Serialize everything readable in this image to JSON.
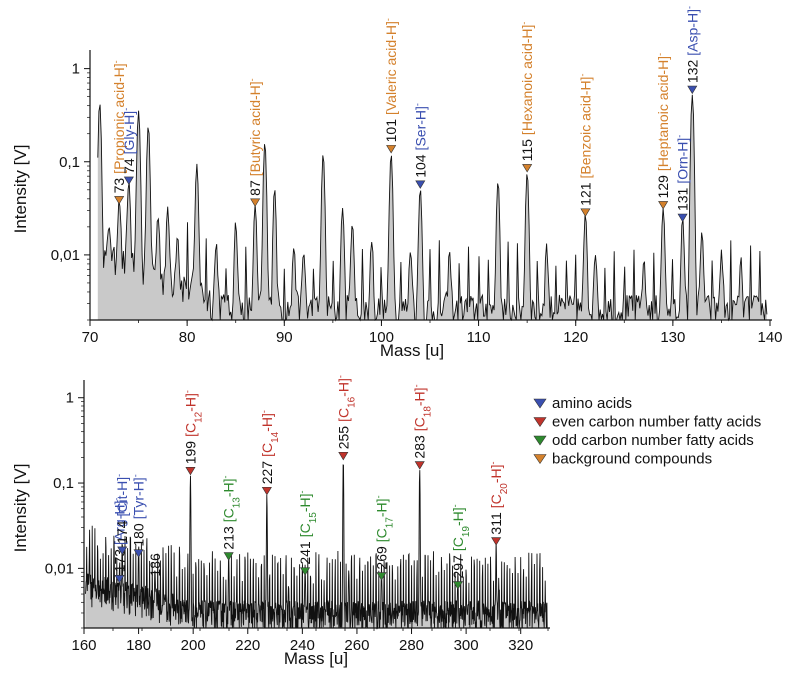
{
  "colors": {
    "amino": "#3a4fb0",
    "even": "#c0332b",
    "odd": "#2e8a2e",
    "background": "#d4812c",
    "trace_fill": "#c9c9c9",
    "trace_line": "#111111"
  },
  "legend": [
    {
      "key": "amino",
      "label": "amino acids"
    },
    {
      "key": "even",
      "label": "even carbon number fatty acids"
    },
    {
      "key": "odd",
      "label": "odd carbon number fatty acids"
    },
    {
      "key": "background",
      "label": "background compounds"
    }
  ],
  "chart_data": [
    {
      "type": "line",
      "xlabel": "Mass [u]",
      "ylabel": "Intensity [V]",
      "xlim": [
        70,
        140
      ],
      "ylim": [
        0.002,
        1.3
      ],
      "yscale": "log",
      "xticks": [
        "70",
        "80",
        "90",
        "100",
        "110",
        "120",
        "130",
        "140"
      ],
      "yticks": [
        "1",
        "0,1",
        "0,01"
      ],
      "series_fill": "area",
      "peaks": [
        {
          "mass": 71,
          "y": 0.42
        },
        {
          "mass": 72,
          "y": 0.012
        },
        {
          "mass": 73,
          "y": 0.034,
          "label": "73",
          "ion_html": "[Propionic acid-H]<tspan baseline-shift='super' font-size='9'>-</tspan>",
          "ion": "[Propionic acid-H]-",
          "group": "background"
        },
        {
          "mass": 74,
          "y": 0.055,
          "label": "74",
          "ion_html": "[Gly-H]<tspan baseline-shift='super' font-size='9'>-</tspan>",
          "ion": "[Gly-H]-",
          "group": "amino"
        },
        {
          "mass": 75,
          "y": 0.35
        },
        {
          "mass": 76,
          "y": 0.24
        },
        {
          "mass": 77,
          "y": 0.02
        },
        {
          "mass": 78,
          "y": 0.025
        },
        {
          "mass": 79,
          "y": 0.012
        },
        {
          "mass": 81,
          "y": 0.09
        },
        {
          "mass": 83,
          "y": 0.01
        },
        {
          "mass": 85,
          "y": 0.02
        },
        {
          "mass": 87,
          "y": 0.032,
          "label": "87",
          "ion_html": "[Butyric acid-H]<tspan baseline-shift='super' font-size='9'>-</tspan>",
          "ion": "[Butyric acid-H]-",
          "group": "background"
        },
        {
          "mass": 88,
          "y": 0.16
        },
        {
          "mass": 89,
          "y": 0.05
        },
        {
          "mass": 91,
          "y": 0.01
        },
        {
          "mass": 92,
          "y": 0.008
        },
        {
          "mass": 94,
          "y": 0.12
        },
        {
          "mass": 96,
          "y": 0.03
        },
        {
          "mass": 97,
          "y": 0.02
        },
        {
          "mass": 99,
          "y": 0.012
        },
        {
          "mass": 101,
          "y": 0.12,
          "label": "101",
          "ion_html": "[Valeric acid-H]<tspan baseline-shift='super' font-size='9'>-</tspan>",
          "ion": "[Valeric acid-H]-",
          "group": "background"
        },
        {
          "mass": 103,
          "y": 0.009
        },
        {
          "mass": 104,
          "y": 0.05,
          "label": "104",
          "ion_html": "[Ser-H]<tspan baseline-shift='super' font-size='9'>-</tspan>",
          "ion": "[Ser-H]-",
          "group": "amino"
        },
        {
          "mass": 107,
          "y": 0.008
        },
        {
          "mass": 112,
          "y": 0.06
        },
        {
          "mass": 115,
          "y": 0.075,
          "label": "115",
          "ion_html": "[Hexanoic acid-H]<tspan baseline-shift='super' font-size='9'>-</tspan>",
          "ion": "[Hexanoic acid-H]-",
          "group": "background"
        },
        {
          "mass": 117,
          "y": 0.01
        },
        {
          "mass": 121,
          "y": 0.025,
          "label": "121",
          "ion_html": "[Benzoic acid-H]<tspan baseline-shift='super' font-size='9'>-</tspan>",
          "ion": "[Benzoic acid-H]-",
          "group": "background"
        },
        {
          "mass": 122,
          "y": 0.008
        },
        {
          "mass": 127,
          "y": 0.006
        },
        {
          "mass": 129,
          "y": 0.03,
          "label": "129",
          "ion_html": "[Heptanoic acid-H]<tspan baseline-shift='super' font-size='9'>-</tspan>",
          "ion": "[Heptanoic acid-H]-",
          "group": "background"
        },
        {
          "mass": 131,
          "y": 0.022,
          "label": "131",
          "ion_html": "[Orn-H]<tspan baseline-shift='super' font-size='9'>-</tspan>",
          "ion": "[Orn-H]-",
          "group": "amino"
        },
        {
          "mass": 132,
          "y": 0.52,
          "label": "132",
          "ion_html": "[Asp-H]<tspan baseline-shift='super' font-size='9'>-</tspan>",
          "ion": "[Asp-H]-",
          "group": "amino"
        },
        {
          "mass": 133,
          "y": 0.015
        },
        {
          "mass": 135,
          "y": 0.008
        },
        {
          "mass": 137,
          "y": 0.006
        }
      ]
    },
    {
      "type": "line",
      "xlabel": "Mass [u]",
      "ylabel": "Intensity [V]",
      "xlim": [
        160,
        330
      ],
      "ylim": [
        0.002,
        1.3
      ],
      "yscale": "log",
      "xticks": [
        "160",
        "180",
        "200",
        "220",
        "240",
        "260",
        "280",
        "300",
        "320"
      ],
      "yticks": [
        "1",
        "0,1",
        "0,01"
      ],
      "series_fill": "area",
      "peaks": [
        {
          "mass": 173,
          "y": 0.0065,
          "label": "173",
          "ion_html": "[Arg-H]<tspan baseline-shift='super' font-size='9'>-</tspan>",
          "ion": "[Arg-H]-",
          "group": "amino"
        },
        {
          "mass": 174,
          "y": 0.014,
          "label": "174",
          "ion_html": "[Cit-H]<tspan baseline-shift='super' font-size='9'>-</tspan>",
          "ion": "[Cit-H]-",
          "group": "amino"
        },
        {
          "mass": 180,
          "y": 0.013,
          "label": "180",
          "ion_html": "[Tyr-H]<tspan baseline-shift='super' font-size='9'>-</tspan>",
          "ion": "[Tyr-H]-",
          "group": "amino"
        },
        {
          "mass": 186,
          "y": 0.007,
          "label": "186"
        },
        {
          "mass": 199,
          "y": 0.12,
          "label": "199",
          "ion_html": "[C<tspan baseline-shift='sub' font-size='10'>12</tspan>-H]<tspan baseline-shift='super' font-size='9'>-</tspan>",
          "ion": "[C12-H]-",
          "group": "even"
        },
        {
          "mass": 213,
          "y": 0.012,
          "label": "213",
          "ion_html": "[C<tspan baseline-shift='sub' font-size='10'>13</tspan>-H]<tspan baseline-shift='super' font-size='9'>-</tspan>",
          "ion": "[C13-H]-",
          "group": "odd"
        },
        {
          "mass": 227,
          "y": 0.07,
          "label": "227",
          "ion_html": "[C<tspan baseline-shift='sub' font-size='10'>14</tspan>-H]<tspan baseline-shift='super' font-size='9'>-</tspan>",
          "ion": "[C14-H]-",
          "group": "even"
        },
        {
          "mass": 235,
          "y": 0.004
        },
        {
          "mass": 241,
          "y": 0.008,
          "label": "241",
          "ion_html": "[C<tspan baseline-shift='sub' font-size='10'>15</tspan>-H]<tspan baseline-shift='super' font-size='9'>-</tspan>",
          "ion": "[C15-H]-",
          "group": "odd"
        },
        {
          "mass": 255,
          "y": 0.18,
          "label": "255",
          "ion_html": "[C<tspan baseline-shift='sub' font-size='10'>16</tspan>-H]<tspan baseline-shift='super' font-size='9'>-</tspan>",
          "ion": "[C16-H]-",
          "group": "even"
        },
        {
          "mass": 257,
          "y": 0.006
        },
        {
          "mass": 269,
          "y": 0.007,
          "label": "269",
          "ion_html": "[C<tspan baseline-shift='sub' font-size='10'>17</tspan>-H]<tspan baseline-shift='super' font-size='9'>-</tspan>",
          "ion": "[C17-H]-",
          "group": "odd"
        },
        {
          "mass": 283,
          "y": 0.14,
          "label": "283",
          "ion_html": "[C<tspan baseline-shift='sub' font-size='10'>18</tspan>-H]<tspan baseline-shift='super' font-size='9'>-</tspan>",
          "ion": "[C18-H]-",
          "group": "even"
        },
        {
          "mass": 297,
          "y": 0.0055,
          "label": "297",
          "ion_html": "[C<tspan baseline-shift='sub' font-size='10'>19</tspan>-H]<tspan baseline-shift='super' font-size='9'>-</tspan>",
          "ion": "[C19-H]-",
          "group": "odd"
        },
        {
          "mass": 311,
          "y": 0.018,
          "label": "311",
          "ion_html": "[C<tspan baseline-shift='sub' font-size='10'>20</tspan>-H]<tspan baseline-shift='super' font-size='9'>-</tspan>",
          "ion": "[C20-H]-",
          "group": "even"
        },
        {
          "mass": 312,
          "y": 0.004
        }
      ]
    }
  ]
}
